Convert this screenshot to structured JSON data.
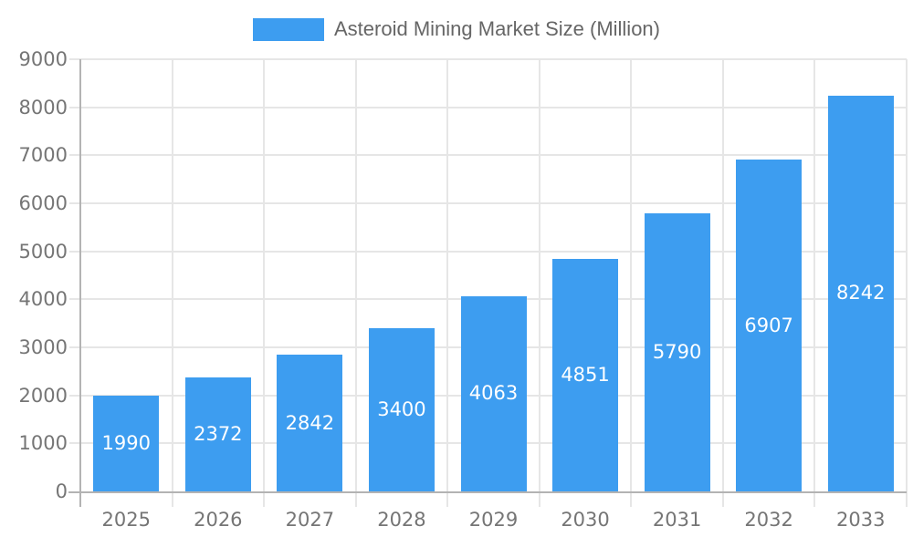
{
  "chart_data": {
    "type": "bar",
    "title": "Asteroid Mining Market Size (Million)",
    "legend_entries": [
      "Asteroid Mining Market Size (Million)"
    ],
    "legend_position": "top",
    "categories": [
      "2025",
      "2026",
      "2027",
      "2028",
      "2029",
      "2030",
      "2031",
      "2032",
      "2033"
    ],
    "values": [
      1990,
      2372,
      2842,
      3400,
      4063,
      4851,
      5790,
      6907,
      8242
    ],
    "xlabel": "",
    "ylabel": "",
    "ylim": [
      0,
      9000
    ],
    "ytick_step": 1000,
    "grid": true,
    "value_labels_shown": true,
    "colors": {
      "bar": "#3d9df0",
      "value_label": "#ffffff",
      "axis_text": "#757575",
      "legend_text": "#666666",
      "gridline": "#e6e6e6",
      "axis_line": "#b3b3b3",
      "background": "#ffffff"
    }
  }
}
